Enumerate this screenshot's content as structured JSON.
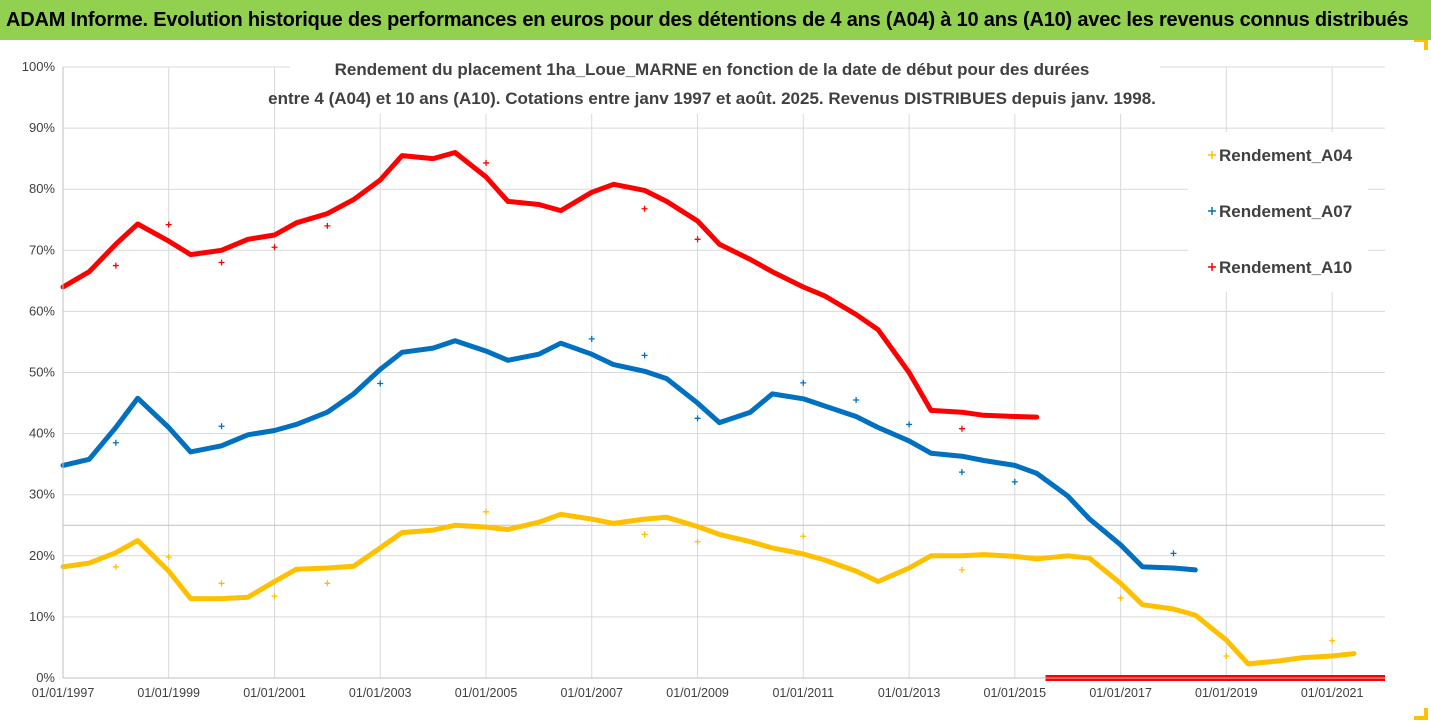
{
  "banner": {
    "text": "ADAM Informe. Evolution historique des performances en euros pour des détentions de 4 ans (A04) à 10 ans (A10) avec les revenus connus distribués",
    "color": "#92d050"
  },
  "chart_data": {
    "type": "scatter",
    "title_lines": [
      "Rendement du placement 1ha_Loue_MARNE en fonction de la date de début pour des durées",
      "entre 4 (A04) et 10 ans (A10). Cotations entre janv 1997 et août. 2025. Revenus DISTRIBUES depuis janv. 1998."
    ],
    "xlim": [
      "1997-01-01",
      "2022-01-01"
    ],
    "x_tick_labels": [
      "01/01/1997",
      "01/01/1999",
      "01/01/2001",
      "01/01/2003",
      "01/01/2005",
      "01/01/2007",
      "01/01/2009",
      "01/01/2011",
      "01/01/2013",
      "01/01/2015",
      "01/01/2017",
      "01/01/2019",
      "01/01/2021"
    ],
    "ylim": [
      0,
      100
    ],
    "y_tick_labels": [
      "0%",
      "10%",
      "20%",
      "30%",
      "40%",
      "50%",
      "60%",
      "70%",
      "80%",
      "90%",
      "100%"
    ],
    "grid": true,
    "legend_position": "right",
    "series": [
      {
        "name": "Rendement_A04",
        "color": "#ffc000",
        "points": [
          [
            "1997-01-01",
            18.2
          ],
          [
            "1997-07-01",
            18.8
          ],
          [
            "1998-01-01",
            20.5
          ],
          [
            "1998-06-01",
            22.5
          ],
          [
            "1999-01-01",
            17.5
          ],
          [
            "1999-06-01",
            13
          ],
          [
            "2000-01-01",
            13
          ],
          [
            "2000-07-01",
            13.2
          ],
          [
            "2001-01-01",
            15.8
          ],
          [
            "2001-06-01",
            17.8
          ],
          [
            "2002-01-01",
            18
          ],
          [
            "2002-07-01",
            18.3
          ],
          [
            "2003-01-01",
            21.3
          ],
          [
            "2003-06-01",
            23.8
          ],
          [
            "2004-01-01",
            24.2
          ],
          [
            "2004-06-01",
            25
          ],
          [
            "2005-01-01",
            24.7
          ],
          [
            "2005-06-01",
            24.3
          ],
          [
            "2006-01-01",
            25.5
          ],
          [
            "2006-06-01",
            26.8
          ],
          [
            "2007-01-01",
            26
          ],
          [
            "2007-06-01",
            25.3
          ],
          [
            "2008-01-01",
            26
          ],
          [
            "2008-06-01",
            26.3
          ],
          [
            "2009-01-01",
            24.8
          ],
          [
            "2009-06-01",
            23.5
          ],
          [
            "2010-01-01",
            22.3
          ],
          [
            "2010-06-01",
            21.3
          ],
          [
            "2011-01-01",
            20.3
          ],
          [
            "2011-06-01",
            19.3
          ],
          [
            "2012-01-01",
            17.5
          ],
          [
            "2012-06-01",
            15.8
          ],
          [
            "2013-01-01",
            18
          ],
          [
            "2013-06-01",
            20
          ],
          [
            "2014-01-01",
            20
          ],
          [
            "2014-06-01",
            20.2
          ],
          [
            "2015-01-01",
            19.9
          ],
          [
            "2015-06-01",
            19.5
          ],
          [
            "2016-01-01",
            20
          ],
          [
            "2016-06-01",
            19.6
          ],
          [
            "2017-01-01",
            15.5
          ],
          [
            "2017-06-01",
            12
          ],
          [
            "2018-01-01",
            11.3
          ],
          [
            "2018-06-01",
            10.3
          ],
          [
            "2019-01-01",
            6.2
          ],
          [
            "2019-06-01",
            2.3
          ],
          [
            "2020-01-01",
            2.8
          ],
          [
            "2020-06-01",
            3.3
          ],
          [
            "2021-01-01",
            3.6
          ],
          [
            "2021-06-01",
            4
          ]
        ],
        "outliers": [
          [
            "1998-01-01",
            18.2
          ],
          [
            "1999-01-01",
            19.8
          ],
          [
            "2000-01-01",
            15.5
          ],
          [
            "2001-01-01",
            13.4
          ],
          [
            "2002-01-01",
            15.5
          ],
          [
            "2005-01-01",
            27.2
          ],
          [
            "2008-01-01",
            23.5
          ],
          [
            "2009-01-01",
            22.3
          ],
          [
            "2011-01-01",
            23.2
          ],
          [
            "2014-01-01",
            17.7
          ],
          [
            "2017-01-01",
            13.1
          ],
          [
            "2019-01-01",
            3.6
          ],
          [
            "2021-01-01",
            6.1
          ]
        ]
      },
      {
        "name": "Rendement_A07",
        "color": "#0070c0",
        "points": [
          [
            "1997-01-01",
            34.8
          ],
          [
            "1997-07-01",
            35.8
          ],
          [
            "1998-01-01",
            41
          ],
          [
            "1998-06-01",
            45.8
          ],
          [
            "1999-01-01",
            41
          ],
          [
            "1999-06-01",
            37
          ],
          [
            "2000-01-01",
            38
          ],
          [
            "2000-07-01",
            39.8
          ],
          [
            "2001-01-01",
            40.5
          ],
          [
            "2001-06-01",
            41.5
          ],
          [
            "2002-01-01",
            43.5
          ],
          [
            "2002-07-01",
            46.5
          ],
          [
            "2003-01-01",
            50.5
          ],
          [
            "2003-06-01",
            53.3
          ],
          [
            "2004-01-01",
            54
          ],
          [
            "2004-06-01",
            55.2
          ],
          [
            "2005-01-01",
            53.5
          ],
          [
            "2005-06-01",
            52
          ],
          [
            "2006-01-01",
            53
          ],
          [
            "2006-06-01",
            54.8
          ],
          [
            "2007-01-01",
            53
          ],
          [
            "2007-06-01",
            51.3
          ],
          [
            "2008-01-01",
            50.2
          ],
          [
            "2008-06-01",
            49
          ],
          [
            "2009-01-01",
            45
          ],
          [
            "2009-06-01",
            41.8
          ],
          [
            "2010-01-01",
            43.5
          ],
          [
            "2010-06-01",
            46.5
          ],
          [
            "2011-01-01",
            45.7
          ],
          [
            "2011-06-01",
            44.5
          ],
          [
            "2012-01-01",
            42.8
          ],
          [
            "2012-06-01",
            41
          ],
          [
            "2013-01-01",
            38.8
          ],
          [
            "2013-06-01",
            36.8
          ],
          [
            "2014-01-01",
            36.3
          ],
          [
            "2014-06-01",
            35.6
          ],
          [
            "2015-01-01",
            34.8
          ],
          [
            "2015-06-01",
            33.5
          ],
          [
            "2016-01-01",
            29.8
          ],
          [
            "2016-06-01",
            26
          ],
          [
            "2017-01-01",
            21.8
          ],
          [
            "2017-06-01",
            18.2
          ],
          [
            "2018-01-01",
            18
          ],
          [
            "2018-06-01",
            17.7
          ]
        ],
        "outliers": [
          [
            "1998-01-01",
            38.5
          ],
          [
            "2000-01-01",
            41.2
          ],
          [
            "2003-01-01",
            48.2
          ],
          [
            "2007-01-01",
            55.5
          ],
          [
            "2008-01-01",
            52.8
          ],
          [
            "2009-01-01",
            42.5
          ],
          [
            "2011-01-01",
            48.3
          ],
          [
            "2012-01-01",
            45.5
          ],
          [
            "2013-01-01",
            41.5
          ],
          [
            "2014-01-01",
            33.7
          ],
          [
            "2015-01-01",
            32.1
          ],
          [
            "2018-01-01",
            20.4
          ]
        ]
      },
      {
        "name": "Rendement_A10",
        "color": "#ff0000",
        "points": [
          [
            "1997-01-01",
            64
          ],
          [
            "1997-07-01",
            66.5
          ],
          [
            "1998-01-01",
            71
          ],
          [
            "1998-06-01",
            74.3
          ],
          [
            "1999-01-01",
            71.5
          ],
          [
            "1999-06-01",
            69.3
          ],
          [
            "2000-01-01",
            70
          ],
          [
            "2000-07-01",
            71.8
          ],
          [
            "2001-01-01",
            72.5
          ],
          [
            "2001-06-01",
            74.5
          ],
          [
            "2002-01-01",
            76
          ],
          [
            "2002-07-01",
            78.3
          ],
          [
            "2003-01-01",
            81.5
          ],
          [
            "2003-06-01",
            85.5
          ],
          [
            "2004-01-01",
            85
          ],
          [
            "2004-06-01",
            86
          ],
          [
            "2005-01-01",
            82
          ],
          [
            "2005-06-01",
            78
          ],
          [
            "2006-01-01",
            77.5
          ],
          [
            "2006-06-01",
            76.5
          ],
          [
            "2007-01-01",
            79.5
          ],
          [
            "2007-06-01",
            80.8
          ],
          [
            "2008-01-01",
            79.8
          ],
          [
            "2008-06-01",
            78
          ],
          [
            "2009-01-01",
            74.8
          ],
          [
            "2009-06-01",
            71
          ],
          [
            "2010-01-01",
            68.5
          ],
          [
            "2010-06-01",
            66.5
          ],
          [
            "2011-01-01",
            64
          ],
          [
            "2011-06-01",
            62.5
          ],
          [
            "2012-01-01",
            59.5
          ],
          [
            "2012-06-01",
            57
          ],
          [
            "2013-01-01",
            50
          ],
          [
            "2013-06-01",
            43.8
          ],
          [
            "2014-01-01",
            43.5
          ],
          [
            "2014-06-01",
            43
          ],
          [
            "2015-01-01",
            42.8
          ],
          [
            "2015-06-01",
            42.7
          ]
        ],
        "outliers": [
          [
            "1998-01-01",
            67.5
          ],
          [
            "1999-01-01",
            74.2
          ],
          [
            "2000-01-01",
            68
          ],
          [
            "2001-01-01",
            70.5
          ],
          [
            "2002-01-01",
            74
          ],
          [
            "2005-01-01",
            84.3
          ],
          [
            "2008-01-01",
            76.8
          ],
          [
            "2009-01-01",
            71.8
          ],
          [
            "2014-01-01",
            40.8
          ]
        ],
        "zero_segment": [
          "2015-08-01",
          "2022-01-01"
        ]
      }
    ]
  }
}
